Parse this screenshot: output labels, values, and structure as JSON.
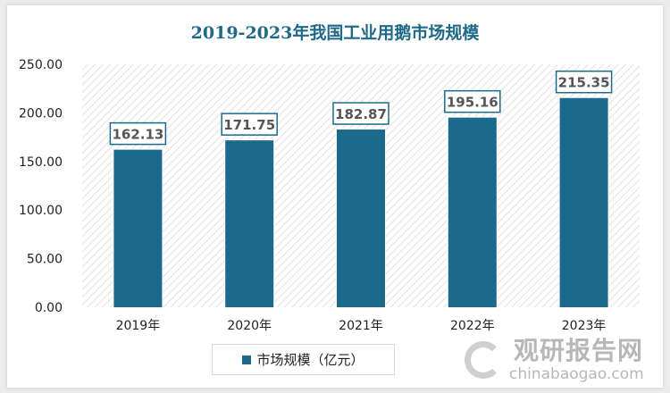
{
  "chart_data": {
    "type": "bar",
    "title": "2019-2023年我国工业用鹅市场规模",
    "categories": [
      "2019年",
      "2020年",
      "2021年",
      "2022年",
      "2023年"
    ],
    "series": [
      {
        "name": "市场规模（亿元）",
        "values": [
          162.13,
          171.75,
          182.87,
          195.16,
          215.35
        ]
      }
    ],
    "data_labels": [
      "162.13",
      "171.75",
      "182.87",
      "195.16",
      "215.35"
    ],
    "yticks": [
      "0.00",
      "50.00",
      "100.00",
      "150.00",
      "200.00",
      "250.00"
    ],
    "ylim": [
      0,
      250
    ],
    "grid": false,
    "legend": "bottom",
    "bar_color": "#1b6a8c",
    "title_color": "#1f6a88"
  },
  "watermark": {
    "cn": "观研报告网",
    "en": "chinabaogao.com"
  }
}
